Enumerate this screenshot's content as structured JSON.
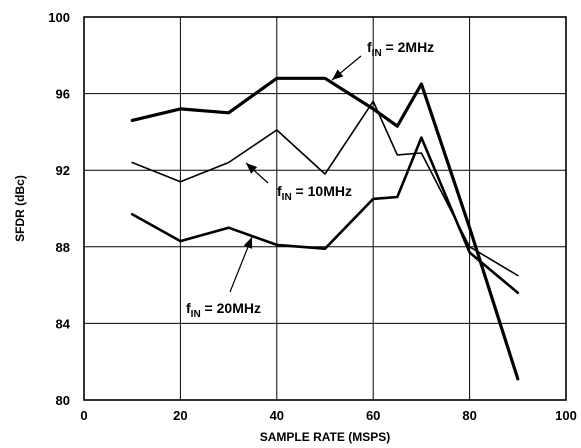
{
  "chart_data": {
    "type": "line",
    "xlabel": "SAMPLE RATE (MSPS)",
    "ylabel": "SFDR (dBc)",
    "xlim": [
      0,
      100
    ],
    "ylim": [
      80,
      100
    ],
    "xticks": [
      "0",
      "20",
      "40",
      "60",
      "80",
      "100"
    ],
    "yticks": [
      "100",
      "96",
      "92",
      "88",
      "84",
      "80"
    ],
    "grid": true,
    "series": [
      {
        "name": "fIN = 2MHz",
        "x": [
          10,
          20,
          30,
          40,
          50,
          60,
          65,
          70,
          80,
          90
        ],
        "y": [
          94.6,
          95.2,
          95.0,
          96.8,
          96.8,
          95.2,
          94.3,
          96.5,
          89.0,
          81.1
        ]
      },
      {
        "name": "fIN = 10MHz",
        "x": [
          10,
          20,
          30,
          40,
          50,
          60,
          65,
          70,
          80,
          90
        ],
        "y": [
          92.4,
          91.4,
          92.4,
          94.1,
          91.8,
          95.6,
          92.8,
          92.9,
          88.0,
          86.5
        ]
      },
      {
        "name": "fIN = 20MHz",
        "x": [
          10,
          20,
          30,
          40,
          50,
          60,
          65,
          70,
          80,
          90
        ],
        "y": [
          89.7,
          88.3,
          89.0,
          88.1,
          87.9,
          90.5,
          90.6,
          93.7,
          87.7,
          85.6
        ]
      }
    ],
    "annotations": [
      {
        "label": "fIN = 2MHz",
        "main": "f",
        "sub": "IN",
        "rest": " = 2MHz"
      },
      {
        "label": "fIN = 10MHz",
        "main": "f",
        "sub": "IN",
        "rest": " = 10MHz"
      },
      {
        "label": "fIN = 20MHz",
        "main": "f",
        "sub": "IN",
        "rest": " = 20MHz"
      }
    ]
  }
}
